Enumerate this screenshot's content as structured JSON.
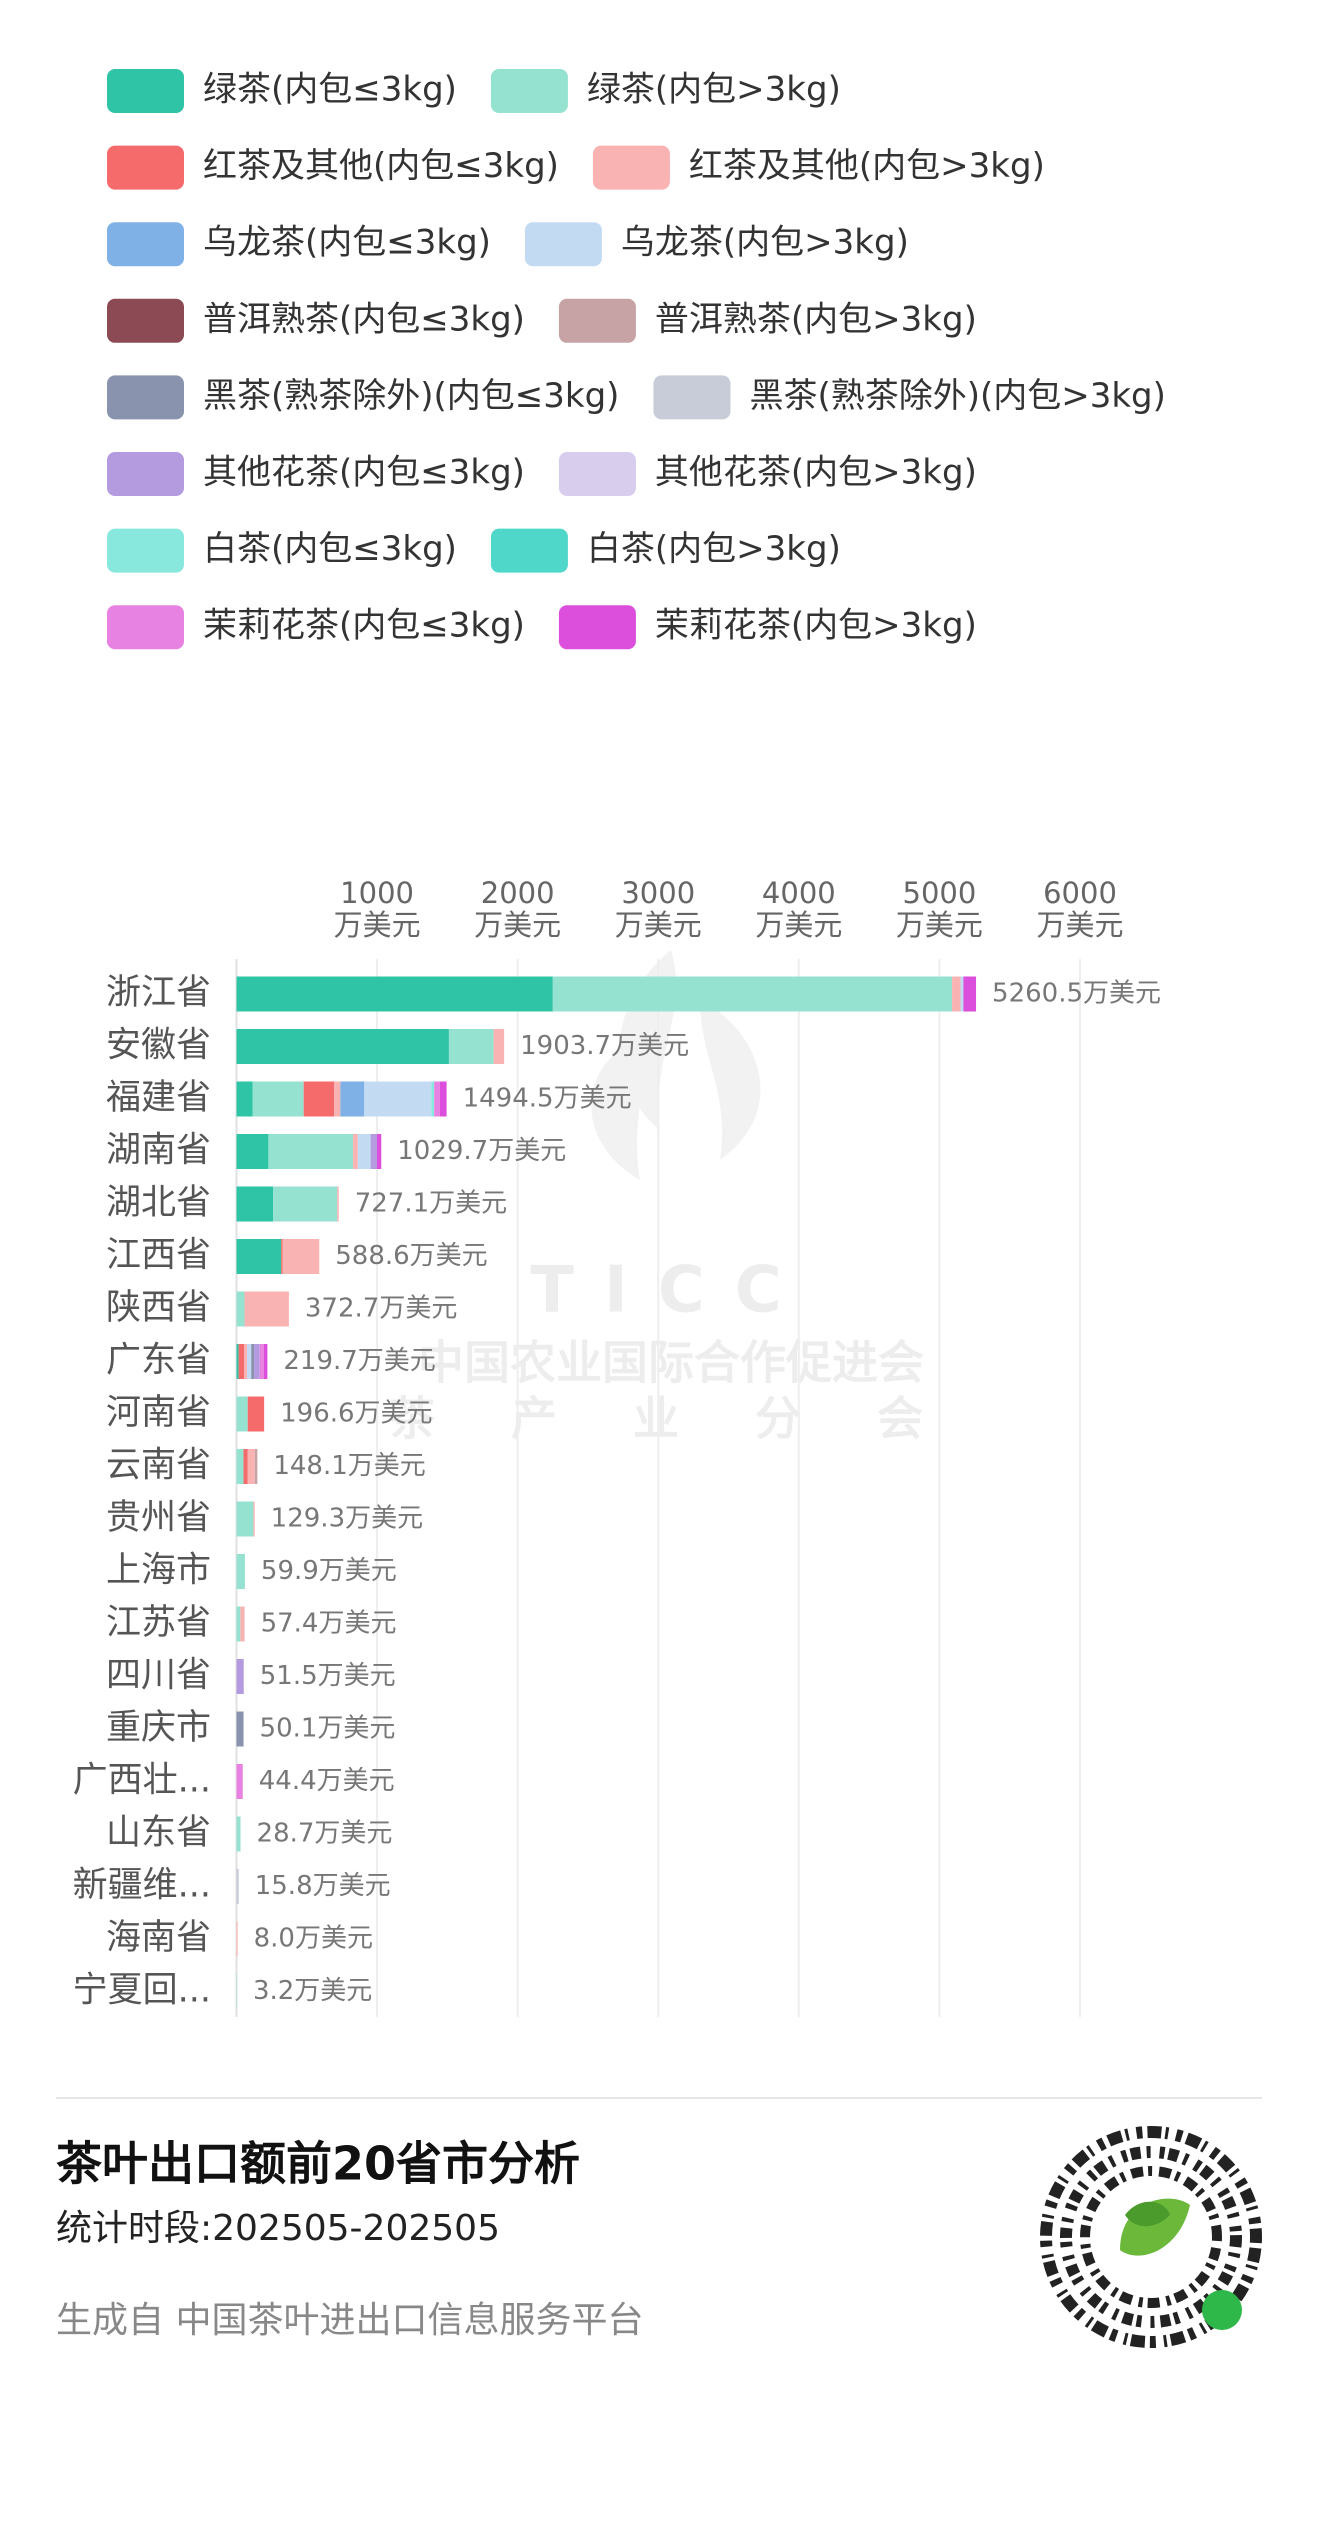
{
  "chart_data": {
    "type": "stacked-bar-horizontal",
    "categories": [
      "浙江省",
      "安徽省",
      "福建省",
      "湖南省",
      "湖北省",
      "江西省",
      "陕西省",
      "广东省",
      "河南省",
      "云南省",
      "贵州省",
      "上海市",
      "江苏省",
      "四川省",
      "重庆市",
      "广西壮...",
      "山东省",
      "新疆维...",
      "海南省",
      "宁夏回..."
    ],
    "series": [
      {
        "name": "绿茶(内包≤3kg)",
        "color": "#2ec4a5",
        "values": [
          2250,
          1511,
          114,
          227,
          261,
          318,
          0,
          15,
          0,
          0,
          0,
          0,
          0,
          0,
          0,
          0,
          0,
          0,
          0,
          0
        ]
      },
      {
        "name": "绿茶(内包>3kg)",
        "color": "#96e2d0",
        "values": [
          2840,
          318,
          364,
          602,
          455,
          0,
          57,
          0,
          80,
          50,
          120,
          59.9,
          27.4,
          0,
          0,
          0,
          28.7,
          0,
          0,
          3.2
        ]
      },
      {
        "name": "红茶及其他(内包≤3kg)",
        "color": "#f56b6b",
        "values": [
          0,
          0,
          216,
          0,
          0,
          9.6,
          0,
          40,
          116.6,
          30,
          0,
          0,
          0,
          0,
          0,
          0,
          0,
          0,
          0,
          0
        ]
      },
      {
        "name": "红茶及其他(内包>3kg)",
        "color": "#f9b3b3",
        "values": [
          60,
          74.7,
          45,
          34,
          11.1,
          261,
          315.7,
          20,
          0,
          50,
          9.3,
          0,
          30,
          0,
          0,
          0,
          0,
          0,
          8.0,
          0
        ]
      },
      {
        "name": "乌龙茶(内包≤3kg)",
        "color": "#7fb0e6",
        "values": [
          0,
          0,
          170,
          0,
          0,
          0,
          0,
          0,
          0,
          0,
          0,
          0,
          0,
          0,
          0,
          0,
          0,
          0,
          0,
          0
        ]
      },
      {
        "name": "乌龙茶(内包>3kg)",
        "color": "#c3dbf2",
        "values": [
          20.5,
          0,
          477,
          91,
          0,
          0,
          0,
          30,
          0,
          0,
          0,
          0,
          0,
          0,
          0,
          0,
          0,
          0,
          0,
          0
        ]
      },
      {
        "name": "普洱熟茶(内包≤3kg)",
        "color": "#8c4a55",
        "values": [
          0,
          0,
          0,
          0,
          0,
          0,
          0,
          0,
          0,
          0,
          0,
          0,
          0,
          0,
          0,
          0,
          0,
          0,
          0,
          0
        ]
      },
      {
        "name": "普洱熟茶(内包>3kg)",
        "color": "#c8a3a6",
        "values": [
          0,
          0,
          0,
          0,
          0,
          0,
          0,
          0,
          0,
          18.1,
          0,
          0,
          0,
          0,
          0,
          0,
          0,
          0,
          0,
          0
        ]
      },
      {
        "name": "黑茶(熟茶除外)(内包≤3kg)",
        "color": "#8a93ad",
        "values": [
          0,
          0,
          0,
          0,
          0,
          0,
          0,
          20,
          0,
          0,
          0,
          0,
          0,
          0,
          50.1,
          0,
          0,
          0,
          0,
          0
        ]
      },
      {
        "name": "黑茶(熟茶除外)(内包>3kg)",
        "color": "#c7ccd8",
        "values": [
          0,
          0,
          0,
          0,
          0,
          0,
          0,
          0,
          0,
          0,
          0,
          0,
          0,
          0,
          0,
          0,
          0,
          15.8,
          0,
          0
        ]
      },
      {
        "name": "其他花茶(内包≤3kg)",
        "color": "#b49be0",
        "values": [
          0,
          0,
          0,
          45,
          0,
          0,
          0,
          40,
          0,
          0,
          0,
          0,
          0,
          51.5,
          0,
          0,
          0,
          0,
          0,
          0
        ]
      },
      {
        "name": "其他花茶(内包>3kg)",
        "color": "#d9cdee",
        "values": [
          0,
          0,
          0,
          0,
          0,
          0,
          0,
          0,
          0,
          0,
          0,
          0,
          0,
          0,
          0,
          0,
          0,
          0,
          0,
          0
        ]
      },
      {
        "name": "白茶(内包≤3kg)",
        "color": "#88e8de",
        "values": [
          0,
          0,
          20,
          0,
          0,
          0,
          0,
          0,
          0,
          0,
          0,
          0,
          0,
          0,
          0,
          0,
          0,
          0,
          0,
          0
        ]
      },
      {
        "name": "白茶(内包>3kg)",
        "color": "#4fd8c9",
        "values": [
          0,
          0,
          0,
          0,
          0,
          0,
          0,
          0,
          0,
          0,
          0,
          0,
          0,
          0,
          0,
          0,
          0,
          0,
          0,
          0
        ]
      },
      {
        "name": "茉莉花茶(内包≤3kg)",
        "color": "#e882e2",
        "values": [
          0,
          0,
          40,
          0,
          0,
          0,
          0,
          30,
          0,
          0,
          0,
          0,
          0,
          0,
          0,
          44.4,
          0,
          0,
          0,
          0
        ]
      },
      {
        "name": "茉莉花茶(内包>3kg)",
        "color": "#dc4fdc",
        "values": [
          90,
          0,
          48.5,
          30.7,
          0,
          0,
          0,
          24.7,
          0,
          0,
          0,
          0,
          0,
          0,
          0,
          0,
          0,
          0,
          0,
          0
        ]
      }
    ],
    "totals": [
      5260.5,
      1903.7,
      1494.5,
      1029.7,
      727.1,
      588.6,
      372.7,
      219.7,
      196.6,
      148.1,
      129.3,
      59.9,
      57.4,
      51.5,
      50.1,
      44.4,
      28.7,
      15.8,
      8.0,
      3.2
    ],
    "total_labels": [
      "5260.5万美元",
      "1903.7万美元",
      "1494.5万美元",
      "1029.7万美元",
      "727.1万美元",
      "588.6万美元",
      "372.7万美元",
      "219.7万美元",
      "196.6万美元",
      "148.1万美元",
      "129.3万美元",
      "59.9万美元",
      "57.4万美元",
      "51.5万美元",
      "50.1万美元",
      "44.4万美元",
      "28.7万美元",
      "15.8万美元",
      "8.0万美元",
      "3.2万美元"
    ],
    "xlim": [
      0,
      6000
    ],
    "xticks": [
      1000,
      2000,
      3000,
      4000,
      5000,
      6000
    ],
    "x_unit": "万美元",
    "grid": true,
    "legend": "top"
  },
  "watermark": {
    "logo": "TICC",
    "org": "中国农业国际合作促进会",
    "branch": "茶 产 业 分 会"
  },
  "footer": {
    "title": "茶叶出口额前20省市分析",
    "period": "统计时段:202505-202505",
    "source": "生成自 中国茶叶进出口信息服务平台"
  }
}
